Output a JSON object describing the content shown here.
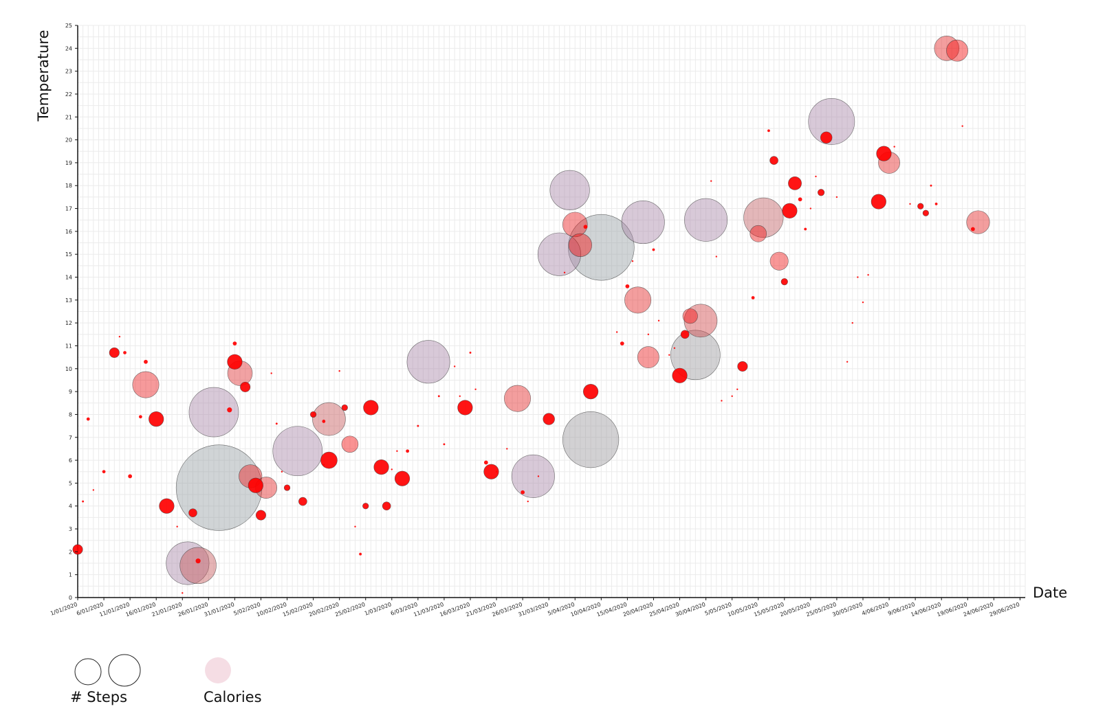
{
  "chart_data": {
    "type": "scatter",
    "xlabel": "Date",
    "ylabel": "Temperature",
    "x_start": "1/01/2020",
    "x_end": "30/06/2020",
    "ylim": [
      0,
      25
    ],
    "y_ticks": [
      "0",
      "1",
      "2",
      "3",
      "4",
      "5",
      "6",
      "7",
      "8",
      "9",
      "10",
      "11",
      "12",
      "13",
      "14",
      "15",
      "16",
      "17",
      "18",
      "19",
      "20",
      "21",
      "22",
      "23",
      "24",
      "25"
    ],
    "x_ticks": [
      "1/01/2020",
      "6/01/2020",
      "11/01/2020",
      "16/01/2020",
      "21/01/2020",
      "26/01/2020",
      "31/01/2020",
      "5/02/2020",
      "10/02/2020",
      "15/02/2020",
      "20/02/2020",
      "25/02/2020",
      "1/03/2020",
      "6/03/2020",
      "11/03/2020",
      "16/03/2020",
      "21/03/2020",
      "26/03/2020",
      "31/03/2020",
      "5/04/2020",
      "10/04/2020",
      "15/04/2020",
      "20/04/2020",
      "25/04/2020",
      "30/04/2020",
      "5/05/2020",
      "10/05/2020",
      "15/05/2020",
      "20/05/2020",
      "25/05/2020",
      "30/05/2020",
      "4/06/2020",
      "9/06/2020",
      "14/06/2020",
      "19/06/2020",
      "24/06/2020",
      "29/06/2020"
    ],
    "grid": true,
    "size_encoding": "# Steps",
    "color_encoding": "Calories",
    "points": [
      {
        "date": "1/01/2020",
        "temp": 2.1,
        "steps": 3,
        "calories": 1.0
      },
      {
        "date": "2/01/2020",
        "temp": 4.2,
        "steps": 0.6,
        "calories": 1.0
      },
      {
        "date": "3/01/2020",
        "temp": 7.8,
        "steps": 1,
        "calories": 1.0
      },
      {
        "date": "4/01/2020",
        "temp": 4.7,
        "steps": 0.5,
        "calories": 1.0
      },
      {
        "date": "6/01/2020",
        "temp": 5.5,
        "steps": 1,
        "calories": 1.0
      },
      {
        "date": "8/01/2020",
        "temp": 10.7,
        "steps": 3,
        "calories": 1.0
      },
      {
        "date": "9/01/2020",
        "temp": 11.4,
        "steps": 0.4,
        "calories": 1.0
      },
      {
        "date": "10/01/2020",
        "temp": 10.7,
        "steps": 1,
        "calories": 1.0
      },
      {
        "date": "11/01/2020",
        "temp": 5.3,
        "steps": 1.2,
        "calories": 1.0
      },
      {
        "date": "13/01/2020",
        "temp": 7.9,
        "steps": 1,
        "calories": 1.0
      },
      {
        "date": "14/01/2020",
        "temp": 10.3,
        "steps": 1.2,
        "calories": 1.0
      },
      {
        "date": "14/01/2020",
        "temp": 9.3,
        "steps": 8,
        "calories": 0.8
      },
      {
        "date": "16/01/2020",
        "temp": 7.8,
        "steps": 4.5,
        "calories": 1.0
      },
      {
        "date": "18/01/2020",
        "temp": 4.0,
        "steps": 4.5,
        "calories": 1.0
      },
      {
        "date": "20/01/2020",
        "temp": 3.1,
        "steps": 0.3,
        "calories": 1.0
      },
      {
        "date": "21/01/2020",
        "temp": 0.2,
        "steps": 0.5,
        "calories": 1.0
      },
      {
        "date": "22/01/2020",
        "temp": 1.5,
        "steps": 13,
        "calories": 0.3
      },
      {
        "date": "23/01/2020",
        "temp": 3.7,
        "steps": 2.5,
        "calories": 1.0
      },
      {
        "date": "24/01/2020",
        "temp": 1.6,
        "steps": 1.5,
        "calories": 1.0
      },
      {
        "date": "24/01/2020",
        "temp": 1.4,
        "steps": 11,
        "calories": 0.45
      },
      {
        "date": "27/01/2020",
        "temp": 8.1,
        "steps": 15,
        "calories": 0.15
      },
      {
        "date": "28/01/2020",
        "temp": 4.8,
        "steps": 26,
        "calories": 0.0
      },
      {
        "date": "30/01/2020",
        "temp": 8.2,
        "steps": 1.5,
        "calories": 1.0
      },
      {
        "date": "31/01/2020",
        "temp": 11.1,
        "steps": 1.2,
        "calories": 1.0
      },
      {
        "date": "31/01/2020",
        "temp": 10.3,
        "steps": 4.5,
        "calories": 1.0
      },
      {
        "date": "1/02/2020",
        "temp": 9.8,
        "steps": 7.5,
        "calories": 0.7
      },
      {
        "date": "2/02/2020",
        "temp": 9.2,
        "steps": 3,
        "calories": 1.0
      },
      {
        "date": "3/02/2020",
        "temp": 5.3,
        "steps": 7,
        "calories": 0.8
      },
      {
        "date": "4/02/2020",
        "temp": 4.9,
        "steps": 4.5,
        "calories": 1.0
      },
      {
        "date": "5/02/2020",
        "temp": 3.6,
        "steps": 3,
        "calories": 1.0
      },
      {
        "date": "6/02/2020",
        "temp": 4.8,
        "steps": 6.5,
        "calories": 0.75
      },
      {
        "date": "7/02/2020",
        "temp": 9.8,
        "steps": 0.5,
        "calories": 1.0
      },
      {
        "date": "8/02/2020",
        "temp": 7.6,
        "steps": 0.6,
        "calories": 1.0
      },
      {
        "date": "9/02/2020",
        "temp": 5.5,
        "steps": 0.5,
        "calories": 1.0
      },
      {
        "date": "10/02/2020",
        "temp": 4.8,
        "steps": 1.8,
        "calories": 1.0
      },
      {
        "date": "12/02/2020",
        "temp": 6.4,
        "steps": 15,
        "calories": 0.15
      },
      {
        "date": "13/02/2020",
        "temp": 4.2,
        "steps": 2.5,
        "calories": 1.0
      },
      {
        "date": "15/02/2020",
        "temp": 8.0,
        "steps": 1.8,
        "calories": 1.0
      },
      {
        "date": "17/02/2020",
        "temp": 5.8,
        "steps": 0.4,
        "calories": 1.0
      },
      {
        "date": "17/02/2020",
        "temp": 7.7,
        "steps": 1,
        "calories": 1.0
      },
      {
        "date": "18/02/2020",
        "temp": 6.0,
        "steps": 5,
        "calories": 1.0
      },
      {
        "date": "18/02/2020",
        "temp": 7.8,
        "steps": 10,
        "calories": 0.45
      },
      {
        "date": "20/02/2020",
        "temp": 9.9,
        "steps": 0.4,
        "calories": 1.0
      },
      {
        "date": "21/02/2020",
        "temp": 8.3,
        "steps": 1.8,
        "calories": 1.0
      },
      {
        "date": "22/02/2020",
        "temp": 6.7,
        "steps": 5,
        "calories": 0.9
      },
      {
        "date": "23/02/2020",
        "temp": 3.1,
        "steps": 0.4,
        "calories": 1.0
      },
      {
        "date": "24/02/2020",
        "temp": 1.9,
        "steps": 0.8,
        "calories": 1.0
      },
      {
        "date": "25/02/2020",
        "temp": 4.0,
        "steps": 1.8,
        "calories": 1.0
      },
      {
        "date": "26/02/2020",
        "temp": 8.3,
        "steps": 4.5,
        "calories": 1.0
      },
      {
        "date": "28/02/2020",
        "temp": 5.7,
        "steps": 4.5,
        "calories": 1.0
      },
      {
        "date": "29/02/2020",
        "temp": 4.0,
        "steps": 2.5,
        "calories": 1.0
      },
      {
        "date": "1/03/2020",
        "temp": 5.6,
        "steps": 0.4,
        "calories": 1.0
      },
      {
        "date": "2/03/2020",
        "temp": 6.4,
        "steps": 0.4,
        "calories": 1.0
      },
      {
        "date": "3/03/2020",
        "temp": 5.2,
        "steps": 4.5,
        "calories": 1.0
      },
      {
        "date": "4/03/2020",
        "temp": 6.4,
        "steps": 1,
        "calories": 1.0
      },
      {
        "date": "6/03/2020",
        "temp": 7.5,
        "steps": 0.6,
        "calories": 1.0
      },
      {
        "date": "8/03/2020",
        "temp": 10.3,
        "steps": 13,
        "calories": 0.3
      },
      {
        "date": "10/03/2020",
        "temp": 8.8,
        "steps": 0.6,
        "calories": 1.0
      },
      {
        "date": "11/03/2020",
        "temp": 6.7,
        "steps": 0.6,
        "calories": 1.0
      },
      {
        "date": "13/03/2020",
        "temp": 10.1,
        "steps": 0.3,
        "calories": 1.0
      },
      {
        "date": "14/03/2020",
        "temp": 8.8,
        "steps": 0.5,
        "calories": 1.0
      },
      {
        "date": "15/03/2020",
        "temp": 8.3,
        "steps": 4.5,
        "calories": 1.0
      },
      {
        "date": "16/03/2020",
        "temp": 10.7,
        "steps": 0.6,
        "calories": 1.0
      },
      {
        "date": "17/03/2020",
        "temp": 9.1,
        "steps": 0.3,
        "calories": 1.0
      },
      {
        "date": "19/03/2020",
        "temp": 5.9,
        "steps": 1.2,
        "calories": 1.0
      },
      {
        "date": "20/03/2020",
        "temp": 5.5,
        "steps": 4.5,
        "calories": 1.0
      },
      {
        "date": "21/03/2020",
        "temp": 5.5,
        "steps": 0.3,
        "calories": 1.0
      },
      {
        "date": "23/03/2020",
        "temp": 6.5,
        "steps": 0.5,
        "calories": 1.0
      },
      {
        "date": "25/03/2020",
        "temp": 8.7,
        "steps": 8,
        "calories": 0.75
      },
      {
        "date": "26/03/2020",
        "temp": 4.6,
        "steps": 1.2,
        "calories": 1.0
      },
      {
        "date": "27/03/2020",
        "temp": 4.2,
        "steps": 0.4,
        "calories": 1.0
      },
      {
        "date": "28/03/2020",
        "temp": 5.3,
        "steps": 13,
        "calories": 0.15
      },
      {
        "date": "29/03/2020",
        "temp": 5.3,
        "steps": 0.5,
        "calories": 1.0
      },
      {
        "date": "31/03/2020",
        "temp": 7.8,
        "steps": 3.5,
        "calories": 1.0
      },
      {
        "date": "2/04/2020",
        "temp": 15.0,
        "steps": 13,
        "calories": 0.15
      },
      {
        "date": "3/04/2020",
        "temp": 14.2,
        "steps": 0.3,
        "calories": 1.0
      },
      {
        "date": "4/04/2020",
        "temp": 17.8,
        "steps": 12,
        "calories": 0.3
      },
      {
        "date": "5/04/2020",
        "temp": 16.3,
        "steps": 7.5,
        "calories": 0.8
      },
      {
        "date": "6/04/2020",
        "temp": 15.4,
        "steps": 7,
        "calories": 0.9
      },
      {
        "date": "7/04/2020",
        "temp": 16.2,
        "steps": 1.2,
        "calories": 1.0
      },
      {
        "date": "8/04/2020",
        "temp": 9.0,
        "steps": 4.5,
        "calories": 1.0
      },
      {
        "date": "8/04/2020",
        "temp": 6.9,
        "steps": 17,
        "calories": 0.05
      },
      {
        "date": "10/04/2020",
        "temp": 15.3,
        "steps": 20,
        "calories": 0.0
      },
      {
        "date": "13/04/2020",
        "temp": 11.6,
        "steps": 0.3,
        "calories": 1.0
      },
      {
        "date": "14/04/2020",
        "temp": 11.1,
        "steps": 1.2,
        "calories": 1.0
      },
      {
        "date": "15/04/2020",
        "temp": 13.6,
        "steps": 1.2,
        "calories": 1.0
      },
      {
        "date": "16/04/2020",
        "temp": 14.7,
        "steps": 0.4,
        "calories": 1.0
      },
      {
        "date": "17/04/2020",
        "temp": 13.0,
        "steps": 8,
        "calories": 0.75
      },
      {
        "date": "18/04/2020",
        "temp": 16.4,
        "steps": 13,
        "calories": 0.15
      },
      {
        "date": "19/04/2020",
        "temp": 10.5,
        "steps": 6.5,
        "calories": 0.8
      },
      {
        "date": "19/04/2020",
        "temp": 11.5,
        "steps": 0.5,
        "calories": 1.0
      },
      {
        "date": "20/04/2020",
        "temp": 15.2,
        "steps": 0.8,
        "calories": 1.0
      },
      {
        "date": "21/04/2020",
        "temp": 12.1,
        "steps": 0.3,
        "calories": 1.0
      },
      {
        "date": "23/04/2020",
        "temp": 10.6,
        "steps": 0.3,
        "calories": 1.0
      },
      {
        "date": "24/04/2020",
        "temp": 10.9,
        "steps": 0.3,
        "calories": 1.0
      },
      {
        "date": "25/04/2020",
        "temp": 9.7,
        "steps": 4.5,
        "calories": 1.0
      },
      {
        "date": "26/04/2020",
        "temp": 11.5,
        "steps": 2.5,
        "calories": 1.0
      },
      {
        "date": "27/04/2020",
        "temp": 12.3,
        "steps": 4.5,
        "calories": 0.9
      },
      {
        "date": "28/04/2020",
        "temp": 10.6,
        "steps": 15,
        "calories": 0.05
      },
      {
        "date": "29/04/2020",
        "temp": 12.1,
        "steps": 10,
        "calories": 0.55
      },
      {
        "date": "30/04/2020",
        "temp": 16.5,
        "steps": 13,
        "calories": 0.25
      },
      {
        "date": "1/05/2020",
        "temp": 18.2,
        "steps": 0.5,
        "calories": 1.0
      },
      {
        "date": "2/05/2020",
        "temp": 14.9,
        "steps": 0.4,
        "calories": 1.0
      },
      {
        "date": "3/05/2020",
        "temp": 8.6,
        "steps": 0.4,
        "calories": 1.0
      },
      {
        "date": "5/05/2020",
        "temp": 8.8,
        "steps": 0.4,
        "calories": 1.0
      },
      {
        "date": "6/05/2020",
        "temp": 9.1,
        "steps": 0.5,
        "calories": 1.0
      },
      {
        "date": "7/05/2020",
        "temp": 10.1,
        "steps": 3,
        "calories": 1.0
      },
      {
        "date": "9/05/2020",
        "temp": 13.1,
        "steps": 1,
        "calories": 1.0
      },
      {
        "date": "10/05/2020",
        "temp": 15.9,
        "steps": 5,
        "calories": 0.85
      },
      {
        "date": "11/05/2020",
        "temp": 16.6,
        "steps": 12,
        "calories": 0.4
      },
      {
        "date": "12/05/2020",
        "temp": 20.4,
        "steps": 0.8,
        "calories": 1.0
      },
      {
        "date": "13/05/2020",
        "temp": 19.1,
        "steps": 2.5,
        "calories": 1.0
      },
      {
        "date": "14/05/2020",
        "temp": 14.7,
        "steps": 5.5,
        "calories": 0.85
      },
      {
        "date": "15/05/2020",
        "temp": 13.8,
        "steps": 2,
        "calories": 1.0
      },
      {
        "date": "16/05/2020",
        "temp": 16.9,
        "steps": 4.5,
        "calories": 1.0
      },
      {
        "date": "17/05/2020",
        "temp": 18.1,
        "steps": 4,
        "calories": 1.0
      },
      {
        "date": "18/05/2020",
        "temp": 17.4,
        "steps": 1.2,
        "calories": 1.0
      },
      {
        "date": "19/05/2020",
        "temp": 16.1,
        "steps": 0.8,
        "calories": 1.0
      },
      {
        "date": "20/05/2020",
        "temp": 17.0,
        "steps": 0.4,
        "calories": 1.0
      },
      {
        "date": "21/05/2020",
        "temp": 18.4,
        "steps": 0.2,
        "calories": 1.0
      },
      {
        "date": "22/05/2020",
        "temp": 17.7,
        "steps": 2,
        "calories": 1.0
      },
      {
        "date": "23/05/2020",
        "temp": 20.1,
        "steps": 3.5,
        "calories": 1.0
      },
      {
        "date": "24/05/2020",
        "temp": 20.8,
        "steps": 14,
        "calories": 0.15
      },
      {
        "date": "25/05/2020",
        "temp": 17.5,
        "steps": 0.2,
        "calories": 1.0
      },
      {
        "date": "27/05/2020",
        "temp": 10.3,
        "steps": 0.4,
        "calories": 1.0
      },
      {
        "date": "28/05/2020",
        "temp": 12.0,
        "steps": 0.5,
        "calories": 1.0
      },
      {
        "date": "29/05/2020",
        "temp": 14.0,
        "steps": 0.4,
        "calories": 1.0
      },
      {
        "date": "30/05/2020",
        "temp": 12.9,
        "steps": 0.5,
        "calories": 1.0
      },
      {
        "date": "31/05/2020",
        "temp": 14.1,
        "steps": 0.5,
        "calories": 1.0
      },
      {
        "date": "2/06/2020",
        "temp": 17.3,
        "steps": 4.5,
        "calories": 1.0
      },
      {
        "date": "3/06/2020",
        "temp": 19.4,
        "steps": 4.5,
        "calories": 1.0
      },
      {
        "date": "4/06/2020",
        "temp": 19.0,
        "steps": 6.5,
        "calories": 0.75
      },
      {
        "date": "5/06/2020",
        "temp": 19.7,
        "steps": 0.3,
        "calories": 1.0
      },
      {
        "date": "8/06/2020",
        "temp": 17.2,
        "steps": 0.3,
        "calories": 1.0
      },
      {
        "date": "10/06/2020",
        "temp": 17.1,
        "steps": 1.8,
        "calories": 1.0
      },
      {
        "date": "11/06/2020",
        "temp": 16.8,
        "steps": 1.8,
        "calories": 1.0
      },
      {
        "date": "12/06/2020",
        "temp": 18.0,
        "steps": 0.6,
        "calories": 1.0
      },
      {
        "date": "13/06/2020",
        "temp": 17.2,
        "steps": 0.8,
        "calories": 1.0
      },
      {
        "date": "15/06/2020",
        "temp": 24.0,
        "steps": 7.5,
        "calories": 0.75
      },
      {
        "date": "17/06/2020",
        "temp": 23.9,
        "steps": 6.5,
        "calories": 0.9
      },
      {
        "date": "18/06/2020",
        "temp": 20.6,
        "steps": 0.3,
        "calories": 1.0
      },
      {
        "date": "20/06/2020",
        "temp": 16.1,
        "steps": 1.2,
        "calories": 1.0
      },
      {
        "date": "21/06/2020",
        "temp": 16.4,
        "steps": 7,
        "calories": 0.75
      }
    ],
    "legend": {
      "size_label": "# Steps",
      "color_label": "Calories"
    }
  }
}
